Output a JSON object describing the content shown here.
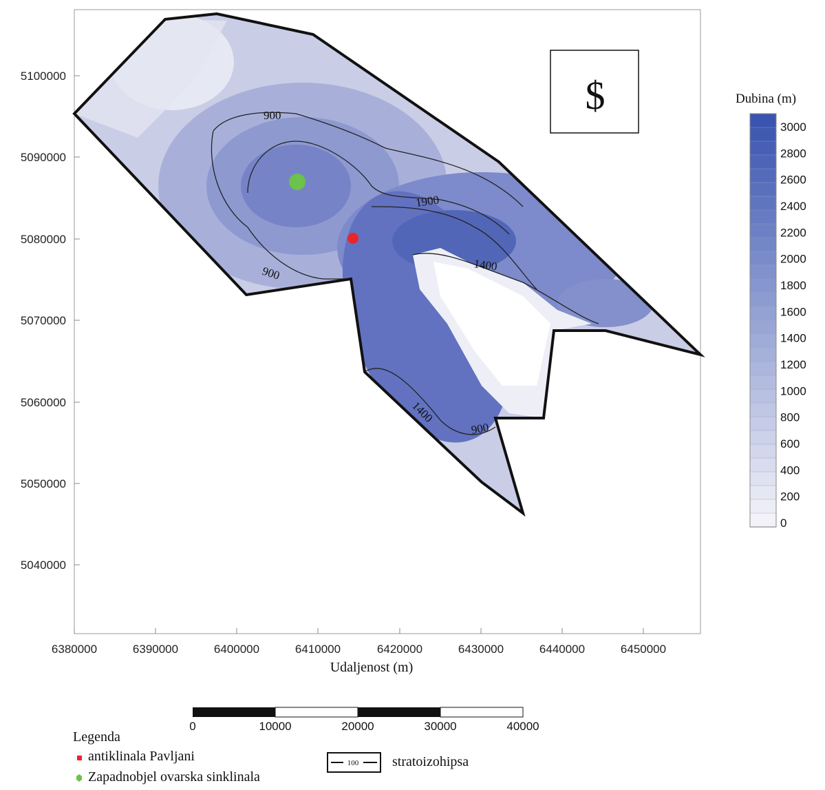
{
  "map": {
    "x_axis": {
      "title": "Udaljenost (m)",
      "ticks": [
        "6380000",
        "6390000",
        "6400000",
        "6410000",
        "6420000",
        "6430000",
        "6440000",
        "6450000"
      ]
    },
    "y_axis": {
      "ticks": [
        "5100000",
        "5090000",
        "5080000",
        "5070000",
        "5060000",
        "5050000",
        "5040000"
      ]
    },
    "contour_labels": [
      "900",
      "900",
      "1900",
      "1400",
      "1400",
      "900"
    ],
    "north_symbol": "$",
    "markers": [
      {
        "name": "Zapadnobjelovarska sinklinala",
        "color": "#6cc24a"
      },
      {
        "name": "antiklinala Pavljani",
        "color": "#e8262a"
      }
    ]
  },
  "colorbar": {
    "title": "Dubina (m)",
    "labels": [
      "3000",
      "2800",
      "2600",
      "2400",
      "2200",
      "2000",
      "1800",
      "1600",
      "1400",
      "1200",
      "1000",
      "800",
      "600",
      "400",
      "200",
      "0"
    ],
    "color_low": "#f2f2f8",
    "color_high": "#3a55b0"
  },
  "scalebar": {
    "labels": [
      "0",
      "10000",
      "20000",
      "30000",
      "40000"
    ]
  },
  "legend": {
    "title": "Legenda",
    "items": [
      {
        "label": "antiklinala Pavljani",
        "color": "#e8262a"
      },
      {
        "label": "Zapadnobjel ovarska sinklinala",
        "color": "#6cc24a"
      }
    ],
    "contour_sample": "100",
    "contour_label": "stratoizohipsa"
  }
}
